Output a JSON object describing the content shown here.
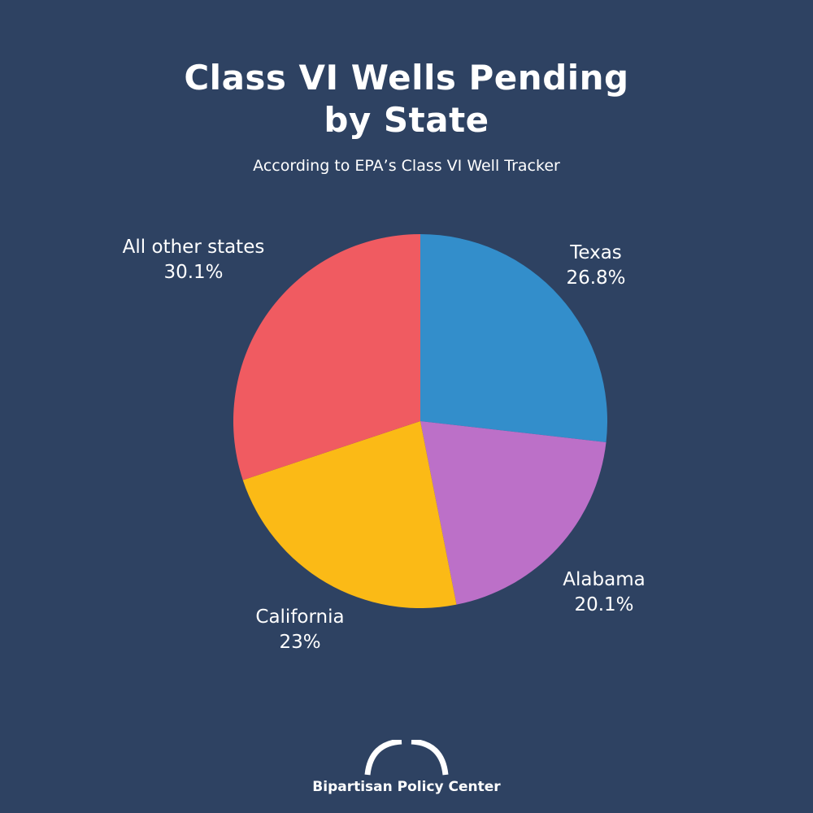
{
  "title_lines": [
    "Class VI Wells Pending",
    "by State"
  ],
  "subtitle": "According to EPA’s Class VI Well Tracker",
  "chart_data": {
    "type": "pie",
    "title": "Class VI Wells Pending by State",
    "subtitle": "According to EPA’s Class VI Well Tracker",
    "slices": [
      {
        "label": "Texas",
        "value": 26.8,
        "value_label": "26.8%",
        "color": "#338ecb"
      },
      {
        "label": "Alabama",
        "value": 20.1,
        "value_label": "20.1%",
        "color": "#bc70c8"
      },
      {
        "label": "California",
        "value": 23,
        "value_label": "23%",
        "color": "#fbba16"
      },
      {
        "label": "All other states",
        "value": 30.1,
        "value_label": "30.1%",
        "color": "#f05b61"
      }
    ],
    "start_position": "12 o'clock",
    "direction": "clockwise",
    "legend": "none"
  },
  "colors": {
    "background": "#2e4262",
    "text": "#ffffff"
  },
  "footer": {
    "logo_icon": "arch-icon",
    "logo_text": "Bipartisan Policy Center"
  }
}
